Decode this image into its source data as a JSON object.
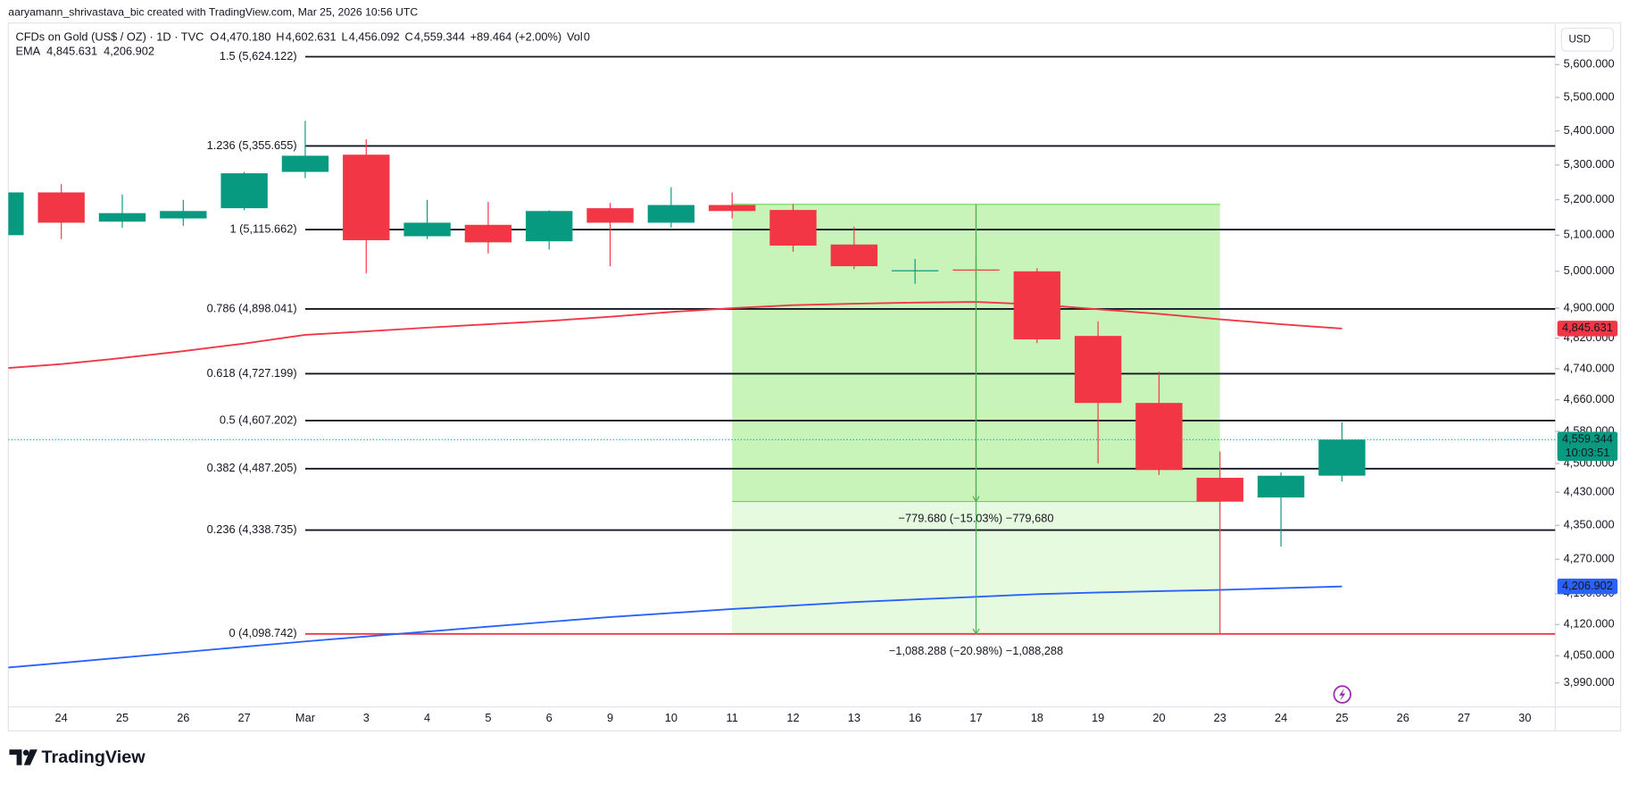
{
  "header": {
    "attribution": "aaryamann_shrivastava_bic created with TradingView.com, Mar 25, 2026 10:56 UTC"
  },
  "footer": {
    "brand": "TradingView"
  },
  "chart_data": {
    "type": "candlestick",
    "title": "CFDs on Gold (US$ / OZ) · 1D · TVC",
    "legend": {
      "fields": [
        {
          "key": "O",
          "value": "4,470.180"
        },
        {
          "key": "H",
          "value": "4,602.631"
        },
        {
          "key": "L",
          "value": "4,456.092"
        },
        {
          "key": "C",
          "value": "4,559.344"
        }
      ],
      "change": "+89.464 (+2.00%)",
      "volume_label": "Vol",
      "volume": "0",
      "countdown": "10:03:51"
    },
    "currency": "USD",
    "categories": [
      null,
      "24",
      "25",
      "26",
      "27",
      "Mar",
      "3",
      "4",
      "5",
      "6",
      "9",
      "10",
      "11",
      "12",
      "13",
      "16",
      "17",
      "18",
      "19",
      "20",
      "23",
      "24",
      "25",
      "26",
      "27",
      "30"
    ],
    "open": [
      5100,
      5221,
      5138,
      5147,
      5176,
      5280,
      5330,
      5097,
      5129,
      5083,
      5176,
      5135,
      5185,
      5171,
      5074,
      5000,
      5005,
      5000,
      4826,
      4652,
      4465,
      4417,
      4470.18,
      null,
      null,
      null
    ],
    "high": [
      5225,
      5245,
      5215,
      5200,
      5280,
      5430,
      5375,
      5200,
      5194,
      5170,
      5191,
      5236,
      5221,
      5188,
      5124,
      5034,
      5040,
      5009,
      4865,
      4732,
      4530,
      4478,
      4602.631,
      null,
      null,
      null
    ],
    "low": [
      5090,
      5089,
      5121,
      5126,
      5170,
      5262,
      4994,
      5089,
      5049,
      5060,
      5014,
      5121,
      5147,
      5054,
      5006,
      4966,
      4969,
      4807,
      4500,
      4472,
      4098,
      4300,
      4456.092,
      null,
      null,
      null
    ],
    "close": [
      5221,
      5135,
      5162,
      5168,
      5276,
      5327,
      5086,
      5135,
      5080,
      5168,
      5135,
      5185,
      5168,
      5071,
      5014,
      5003,
      5002,
      4817,
      4652,
      4484,
      4407,
      4470,
      4559.344,
      null,
      null,
      null
    ],
    "up_color": "#089981",
    "down_color": "#f23645",
    "indicator": {
      "name": "EMA",
      "lines": [
        {
          "color": "#f23645",
          "label": "4,845.631",
          "values": [
            4742,
            4752,
            4768,
            4786,
            4806,
            4829,
            4838,
            4848,
            4857,
            4866,
            4877,
            4890,
            4900,
            4908,
            4912,
            4915,
            4917,
            4910,
            4897,
            4885,
            4870,
            4857,
            4845.631,
            null,
            null,
            null
          ]
        },
        {
          "color": "#2962ff",
          "label": "4,206.902",
          "values": [
            4024,
            4034,
            4046,
            4058,
            4070,
            4082,
            4093,
            4104,
            4115,
            4126,
            4137,
            4146,
            4155,
            4163,
            4171,
            4177,
            4183,
            4189,
            4193,
            4196,
            4199,
            4203,
            4206.902,
            null,
            null,
            null
          ]
        }
      ]
    },
    "log": true,
    "ylim": [
      3938,
      5709.5
    ],
    "yticks": [
      {
        "value": 3990,
        "label": "3,990.000"
      },
      {
        "value": 4050,
        "label": "4,050.000"
      },
      {
        "value": 4120,
        "label": "4,120.000"
      },
      {
        "value": 4190,
        "label": "4,190.000"
      },
      {
        "value": 4270,
        "label": "4,270.000"
      },
      {
        "value": 4350,
        "label": "4,350.000"
      },
      {
        "value": 4430,
        "label": "4,430.000"
      },
      {
        "value": 4500,
        "label": "4,500.000"
      },
      {
        "value": 4580,
        "label": "4,580.000"
      },
      {
        "value": 4660,
        "label": "4,660.000"
      },
      {
        "value": 4740,
        "label": "4,740.000"
      },
      {
        "value": 4820,
        "label": "4,820.000"
      },
      {
        "value": 4900,
        "label": "4,900.000"
      },
      {
        "value": 5000,
        "label": "5,000.000"
      },
      {
        "value": 5100,
        "label": "5,100.000"
      },
      {
        "value": 5200,
        "label": "5,200.000"
      },
      {
        "value": 5300,
        "label": "5,300.000"
      },
      {
        "value": 5400,
        "label": "5,400.000"
      },
      {
        "value": 5500,
        "label": "5,500.000"
      },
      {
        "value": 5600,
        "label": "5,600.000"
      }
    ],
    "fib_levels": [
      {
        "label": "1.5 (5,624.122)",
        "value": 5624.122,
        "color": "#131722"
      },
      {
        "label": "1.236 (5,355.655)",
        "value": 5355.655,
        "color": "#131722"
      },
      {
        "label": "1 (5,115.662)",
        "value": 5115.662,
        "color": "#131722"
      },
      {
        "label": "0.786 (4,898.041)",
        "value": 4898.041,
        "color": "#131722"
      },
      {
        "label": "0.618 (4,727.199)",
        "value": 4727.199,
        "color": "#131722"
      },
      {
        "label": "0.5 (4,607.202)",
        "value": 4607.202,
        "color": "#131722"
      },
      {
        "label": "0.382 (4,487.205)",
        "value": 4487.205,
        "color": "#131722"
      },
      {
        "label": "0.236 (4,338.735)",
        "value": 4338.735,
        "color": "#131722"
      },
      {
        "label": "0 (4,098.742)",
        "value": 4098.742,
        "color": "#f23645"
      }
    ],
    "measure": {
      "top": 5187.03,
      "levels": [
        {
          "value": 4407.35,
          "label": "−779.680 (−15.03%) −779,680"
        },
        {
          "value": 4098.742,
          "label": "−1,088.288 (−20.98%) −1,088,288"
        }
      ]
    }
  }
}
